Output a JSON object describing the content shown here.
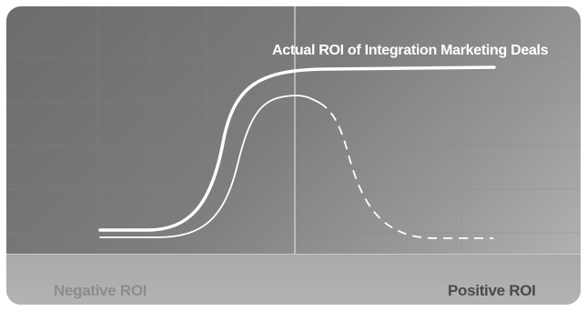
{
  "diagram": {
    "curve_label": "Actual ROI of Integration Marketing Deals",
    "axis": {
      "negative_label": "Negative ROI",
      "positive_label": "Positive ROI"
    },
    "colors": {
      "background_dark": "#6c6c6c",
      "background_light": "#b8b8b8",
      "axis_bar": "#adadad",
      "curve": "#ffffff",
      "gridline": "#8a8a8a"
    }
  }
}
